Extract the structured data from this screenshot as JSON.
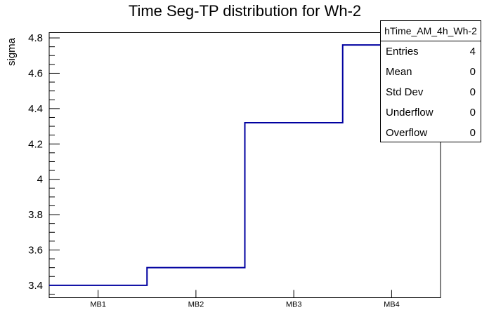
{
  "title": "Time Seg-TP distribution for Wh-2",
  "stats_box": {
    "header": "hTime_AM_4h_Wh-2",
    "rows": [
      {
        "label": "Entries",
        "value": "4"
      },
      {
        "label": "Mean",
        "value": "0"
      },
      {
        "label": "Std Dev",
        "value": "0"
      },
      {
        "label": "Underflow",
        "value": "0"
      },
      {
        "label": "Overflow",
        "value": "0"
      }
    ]
  },
  "chart_data": {
    "type": "bar",
    "subtype": "step-histogram",
    "title": "Time Seg-TP distribution for Wh-2",
    "categories": [
      "MB1",
      "MB2",
      "MB3",
      "MB4"
    ],
    "values": [
      3.4,
      3.5,
      4.32,
      4.76
    ],
    "xlabel": "",
    "ylabel": "sigma",
    "ylim": [
      3.33,
      4.83
    ],
    "y_major_ticks": [
      3.4,
      3.6,
      3.8,
      4,
      4.2,
      4.4,
      4.6,
      4.8
    ],
    "y_minor_step": 0.05,
    "grid": false,
    "legend_position": "none",
    "line_color": "#0000a0",
    "frame_color": "#000000",
    "background_color": "#ffffff"
  }
}
